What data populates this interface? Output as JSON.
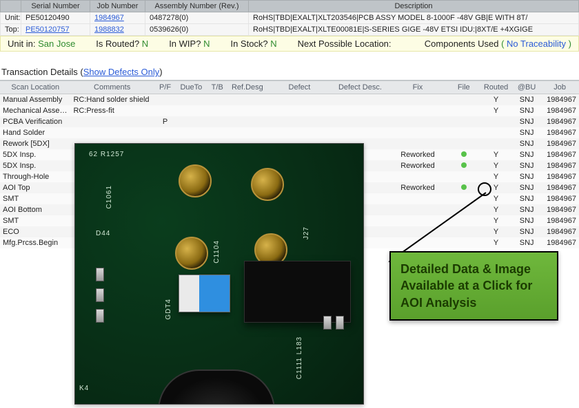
{
  "colors": {
    "header_bg": "#bfc4c8",
    "row_odd": "#f4f4f4",
    "row_even": "#fafafa",
    "status_bg": "#fdfde4",
    "green_text": "#2f8b2f",
    "blue_link": "#2a5bd7",
    "callout_bg": "#5aa02c",
    "pcb_green": "#072a14"
  },
  "top": {
    "headers": {
      "serial": "Serial Number",
      "job": "Job Number",
      "assembly": "Assembly Number (Rev.)",
      "desc": "Description"
    },
    "rows": [
      {
        "label": "Unit:",
        "serial": "PE50120490",
        "job": "1984967",
        "assembly": "0487278(0)",
        "desc": "RoHS|TBD|EXALT|XLT203546|PCB ASSY MODEL 8-1000F -48V GB|E WITH 8T/"
      },
      {
        "label": "Top:",
        "serial": "PE50120757",
        "job": "1988832",
        "assembly": "0539626(0)",
        "desc": "RoHS|TBD|EXALT|XLTE00081E|S-SERIES GIGE -48V ETSI IDU:|8XT/E +4XGIGE"
      }
    ]
  },
  "status": {
    "unitin_label": "Unit in:",
    "unitin_value": "San Jose",
    "routed_label": "Is Routed?",
    "routed_value": "N",
    "inwip_label": "In WIP?",
    "inwip_value": "N",
    "instock_label": "In Stock?",
    "instock_value": "N",
    "nextloc_label": "Next Possible Location:",
    "components_label": "Components Used",
    "components_value": "No Traceability",
    "paren_open": "(",
    "paren_close": "  )"
  },
  "section": {
    "title": "Transaction Details (",
    "link": "Show Defects Only",
    "close": ")"
  },
  "details": {
    "headers": {
      "scan": "Scan Location",
      "comments": "Comments",
      "pf": "P/F",
      "dueto": "DueTo",
      "tb": "T/B",
      "refdesg": "Ref.Desg",
      "defect": "Defect",
      "defectdesc": "Defect Desc.",
      "fix": "Fix",
      "file": "File",
      "routed": "Routed",
      "bu": "@BU",
      "job": "Job"
    },
    "rows": [
      {
        "scan": "Manual Assembly",
        "comments": "RC:Hand solder shield",
        "pf": "",
        "fix": "",
        "file": false,
        "routed": "Y",
        "bu": "SNJ",
        "job": "1984967"
      },
      {
        "scan": "Mechanical Assembly",
        "comments": "RC:Press-fit",
        "pf": "",
        "fix": "",
        "file": false,
        "routed": "Y",
        "bu": "SNJ",
        "job": "1984967"
      },
      {
        "scan": "PCBA Verification",
        "comments": "",
        "pf": "P",
        "fix": "",
        "file": false,
        "routed": "",
        "bu": "SNJ",
        "job": "1984967"
      },
      {
        "scan": "Hand Solder",
        "comments": "",
        "pf": "",
        "fix": "",
        "file": false,
        "routed": "",
        "bu": "SNJ",
        "job": "1984967"
      },
      {
        "scan": "Rework [5DX]",
        "comments": "",
        "pf": "",
        "fix": "",
        "file": false,
        "routed": "",
        "bu": "SNJ",
        "job": "1984967"
      },
      {
        "scan": "5DX Insp.",
        "comments": "",
        "pf": "",
        "fix": "Reworked",
        "file": true,
        "routed": "Y",
        "bu": "SNJ",
        "job": "1984967"
      },
      {
        "scan": "5DX Insp.",
        "comments": "",
        "pf": "",
        "fix": "Reworked",
        "file": true,
        "routed": "Y",
        "bu": "SNJ",
        "job": "1984967"
      },
      {
        "scan": "Through-Hole",
        "comments": "",
        "pf": "",
        "fix": "",
        "file": false,
        "routed": "Y",
        "bu": "SNJ",
        "job": "1984967"
      },
      {
        "scan": "AOI Top",
        "comments": "",
        "pf": "",
        "fix": "Reworked",
        "file": true,
        "routed": "Y",
        "bu": "SNJ",
        "job": "1984967"
      },
      {
        "scan": "SMT",
        "comments": "",
        "pf": "",
        "fix": "",
        "file": false,
        "routed": "Y",
        "bu": "SNJ",
        "job": "1984967"
      },
      {
        "scan": "AOI Bottom",
        "comments": "",
        "pf": "",
        "fix": "",
        "file": false,
        "routed": "Y",
        "bu": "SNJ",
        "job": "1984967"
      },
      {
        "scan": "SMT",
        "comments": "",
        "pf": "",
        "fix": "",
        "file": false,
        "routed": "Y",
        "bu": "SNJ",
        "job": "1984967"
      },
      {
        "scan": "ECO",
        "comments": "",
        "pf": "",
        "fix": "",
        "file": false,
        "routed": "Y",
        "bu": "SNJ",
        "job": "1984967"
      },
      {
        "scan": "Mfg.Prcss.Begin",
        "comments": "",
        "pf": "",
        "fix": "",
        "file": false,
        "routed": "Y",
        "bu": "SNJ",
        "job": "1984967"
      }
    ]
  },
  "callout": {
    "text": "Detailed Data & Image Available at a Click for AOI Analysis"
  },
  "pcb": {
    "silks": [
      "62 R1257",
      "C1061",
      "D44",
      "C1104",
      "J27",
      "GDT4",
      "C1111 L183",
      "K4"
    ]
  }
}
